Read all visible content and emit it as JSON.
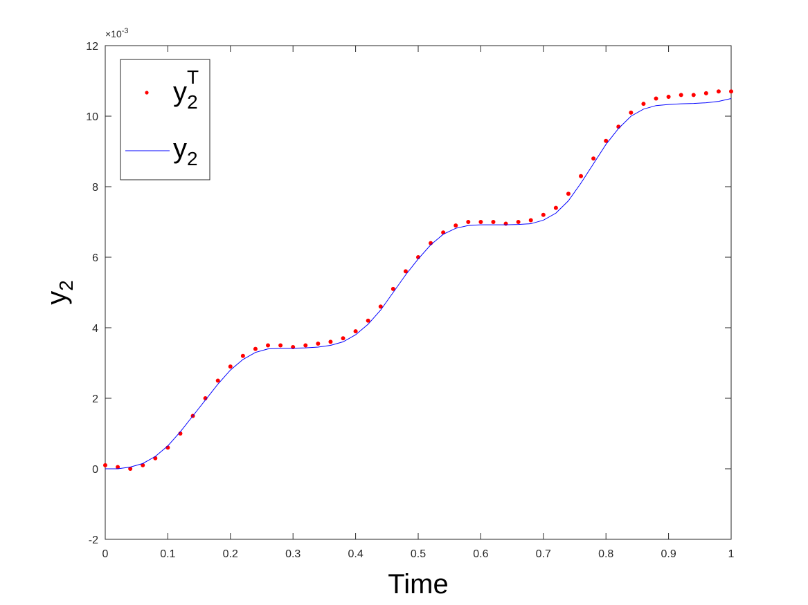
{
  "chart_data": {
    "type": "scatter",
    "xlabel": "Time",
    "ylabel": "y",
    "ylabel_sub": "2",
    "y_exponent_base": "×10",
    "y_exponent_power": "-3",
    "xlim": [
      0,
      1
    ],
    "ylim": [
      -2,
      12
    ],
    "x_ticks": [
      0,
      0.1,
      0.2,
      0.3,
      0.4,
      0.5,
      0.6,
      0.7,
      0.8,
      0.9,
      1
    ],
    "x_tick_labels": [
      "0",
      "0.1",
      "0.2",
      "0.3",
      "0.4",
      "0.5",
      "0.6",
      "0.7",
      "0.8",
      "0.9",
      "1"
    ],
    "y_ticks": [
      -2,
      0,
      2,
      4,
      6,
      8,
      10,
      12
    ],
    "y_tick_labels": [
      "-2",
      "0",
      "2",
      "4",
      "6",
      "8",
      "10",
      "12"
    ],
    "grid": false,
    "legend_position": "top-left",
    "series": [
      {
        "name": "y",
        "name_sub": "2",
        "name_sup": "T",
        "style": "markers",
        "color": "#ff0000",
        "x": [
          0,
          0.02,
          0.04,
          0.06,
          0.08,
          0.1,
          0.12,
          0.14,
          0.16,
          0.18,
          0.2,
          0.22,
          0.24,
          0.26,
          0.28,
          0.3,
          0.32,
          0.34,
          0.36,
          0.38,
          0.4,
          0.42,
          0.44,
          0.46,
          0.48,
          0.5,
          0.52,
          0.54,
          0.56,
          0.58,
          0.6,
          0.62,
          0.64,
          0.66,
          0.68,
          0.7,
          0.72,
          0.74,
          0.76,
          0.78,
          0.8,
          0.82,
          0.84,
          0.86,
          0.88,
          0.9,
          0.92,
          0.94,
          0.96,
          0.98,
          1
        ],
        "y": [
          0.1,
          0.05,
          0.0,
          0.1,
          0.3,
          0.6,
          1.0,
          1.5,
          2.0,
          2.5,
          2.9,
          3.2,
          3.4,
          3.5,
          3.5,
          3.45,
          3.5,
          3.55,
          3.6,
          3.7,
          3.9,
          4.2,
          4.6,
          5.1,
          5.6,
          6.0,
          6.4,
          6.7,
          6.9,
          7.0,
          7.0,
          7.0,
          6.95,
          7.0,
          7.05,
          7.2,
          7.4,
          7.8,
          8.3,
          8.8,
          9.3,
          9.7,
          10.1,
          10.35,
          10.5,
          10.55,
          10.6,
          10.6,
          10.65,
          10.7,
          10.7
        ]
      },
      {
        "name": "y",
        "name_sub": "2",
        "style": "line",
        "color": "#0000ff",
        "x": [
          0,
          0.02,
          0.04,
          0.06,
          0.08,
          0.1,
          0.12,
          0.14,
          0.16,
          0.18,
          0.2,
          0.22,
          0.24,
          0.26,
          0.28,
          0.3,
          0.32,
          0.34,
          0.36,
          0.38,
          0.4,
          0.42,
          0.44,
          0.46,
          0.48,
          0.5,
          0.52,
          0.54,
          0.56,
          0.58,
          0.6,
          0.62,
          0.64,
          0.66,
          0.68,
          0.7,
          0.72,
          0.74,
          0.76,
          0.78,
          0.8,
          0.82,
          0.84,
          0.86,
          0.88,
          0.9,
          0.92,
          0.94,
          0.96,
          0.98,
          1
        ],
        "y": [
          0.0,
          0.0,
          0.05,
          0.15,
          0.35,
          0.65,
          1.05,
          1.5,
          1.95,
          2.4,
          2.8,
          3.1,
          3.3,
          3.4,
          3.42,
          3.42,
          3.43,
          3.45,
          3.5,
          3.6,
          3.8,
          4.1,
          4.5,
          5.0,
          5.5,
          5.95,
          6.35,
          6.65,
          6.82,
          6.9,
          6.92,
          6.92,
          6.92,
          6.93,
          6.95,
          7.05,
          7.25,
          7.6,
          8.1,
          8.65,
          9.2,
          9.65,
          10.0,
          10.2,
          10.3,
          10.33,
          10.35,
          10.36,
          10.38,
          10.42,
          10.5
        ]
      }
    ]
  }
}
